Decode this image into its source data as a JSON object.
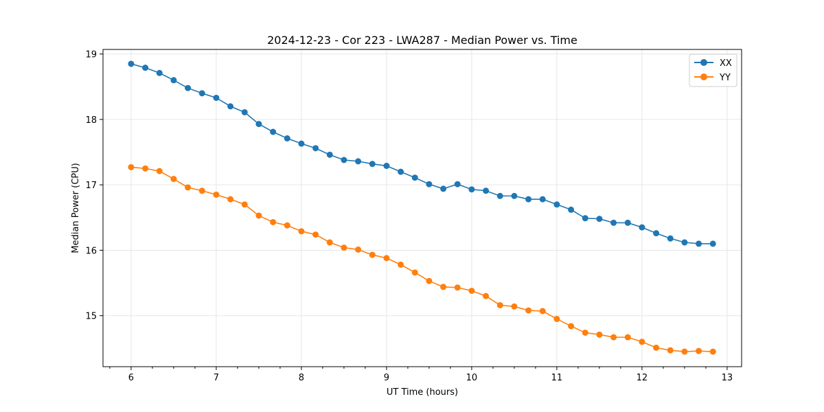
{
  "chart_data": {
    "type": "line",
    "title": "2024-12-23 - Cor 223 - LWA287 - Median Power vs. Time",
    "xlabel": "UT Time (hours)",
    "ylabel": "Median Power (CPU)",
    "xlim": [
      5.67,
      13.17
    ],
    "ylim": [
      14.22,
      19.07
    ],
    "xticks": [
      6,
      7,
      8,
      9,
      10,
      11,
      12,
      13
    ],
    "yticks": [
      15,
      16,
      17,
      18,
      19
    ],
    "grid": true,
    "legend_position": "top-right",
    "x": [
      6.0,
      6.1667,
      6.3333,
      6.5,
      6.6667,
      6.8333,
      7.0,
      7.1667,
      7.3333,
      7.5,
      7.6667,
      7.8333,
      8.0,
      8.1667,
      8.3333,
      8.5,
      8.6667,
      8.8333,
      9.0,
      9.1667,
      9.3333,
      9.5,
      9.6667,
      9.8333,
      10.0,
      10.1667,
      10.3333,
      10.5,
      10.6667,
      10.8333,
      11.0,
      11.1667,
      11.3333,
      11.5,
      11.6667,
      11.8333,
      12.0,
      12.1667,
      12.3333,
      12.5,
      12.6667,
      12.8333
    ],
    "series": [
      {
        "name": "XX",
        "color": "#1f77b4",
        "values": [
          18.85,
          18.79,
          18.71,
          18.6,
          18.48,
          18.4,
          18.33,
          18.2,
          18.11,
          17.93,
          17.81,
          17.71,
          17.63,
          17.56,
          17.46,
          17.38,
          17.36,
          17.32,
          17.29,
          17.2,
          17.11,
          17.01,
          16.94,
          17.01,
          16.93,
          16.91,
          16.83,
          16.83,
          16.78,
          16.78,
          16.7,
          16.62,
          16.49,
          16.48,
          16.42,
          16.42,
          16.35,
          16.26,
          16.18,
          16.12,
          16.1,
          16.1
        ]
      },
      {
        "name": "YY",
        "color": "#ff7f0e",
        "values": [
          17.27,
          17.25,
          17.21,
          17.09,
          16.96,
          16.91,
          16.85,
          16.78,
          16.7,
          16.53,
          16.43,
          16.38,
          16.29,
          16.24,
          16.12,
          16.04,
          16.01,
          15.93,
          15.88,
          15.78,
          15.66,
          15.53,
          15.44,
          15.43,
          15.38,
          15.3,
          15.16,
          15.14,
          15.08,
          15.07,
          14.95,
          14.84,
          14.74,
          14.71,
          14.67,
          14.67,
          14.6,
          14.51,
          14.47,
          14.45,
          14.46,
          14.45
        ]
      }
    ]
  }
}
